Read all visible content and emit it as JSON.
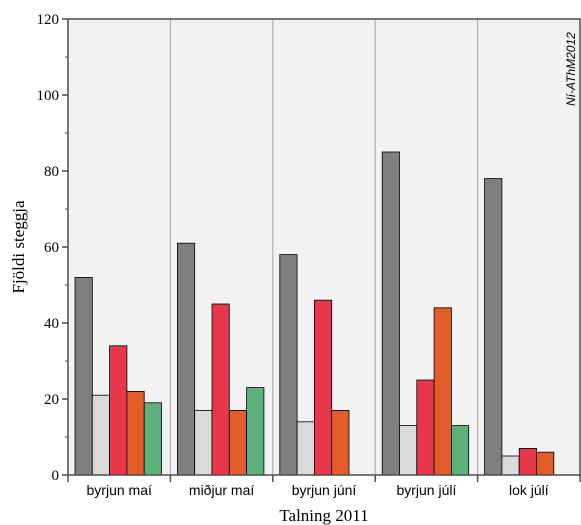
{
  "chart_data": {
    "type": "bar",
    "xlabel": "Talning 2011",
    "ylabel": "Fjöldi steggja",
    "annotation": "Ní-AThM2012",
    "categories": [
      "byrjun maí",
      "miðjur maí",
      "byrjun júní",
      "byrjun júlí",
      "lok júlí"
    ],
    "ylim": [
      0,
      120
    ],
    "yticks": [
      0,
      20,
      40,
      60,
      80,
      100,
      120
    ],
    "grid": true,
    "series": [
      {
        "color": "#7f7f7f",
        "values": [
          52,
          61,
          58,
          85,
          78
        ]
      },
      {
        "color": "#d9d9d9",
        "values": [
          21,
          17,
          14,
          13,
          5
        ]
      },
      {
        "color": "#e8374a",
        "values": [
          34,
          45,
          46,
          25,
          7
        ]
      },
      {
        "color": "#e35d2b",
        "values": [
          22,
          17,
          17,
          44,
          6
        ]
      },
      {
        "color": "#5cb17a",
        "values": [
          19,
          23,
          null,
          13,
          null
        ]
      }
    ]
  }
}
